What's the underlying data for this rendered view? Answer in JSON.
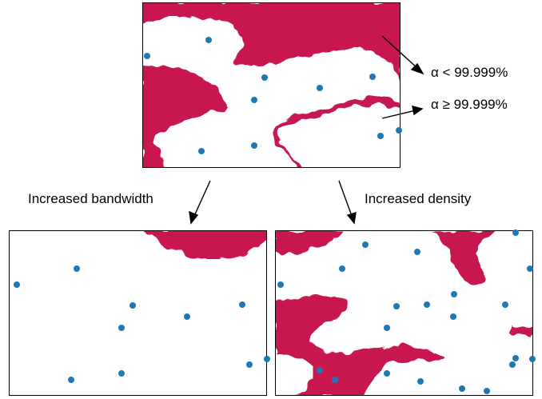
{
  "labels": {
    "alpha_below": "α < 99.999%",
    "alpha_above": "α ≥ 99.999%",
    "increased_bandwidth": "Increased bandwidth",
    "increased_density": "Increased density"
  },
  "colors": {
    "region": "#c8174f",
    "point": "#1f78b4",
    "frame": "#000000",
    "background": "#ffffff"
  }
}
